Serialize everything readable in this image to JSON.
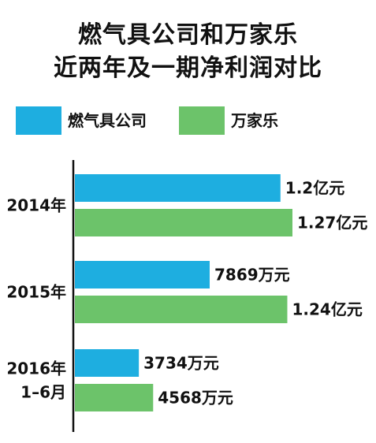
{
  "chart_data": {
    "type": "bar",
    "orientation": "horizontal",
    "title": "燃气具公司和万家乐",
    "subtitle": "近两年及一期净利润对比",
    "categories": [
      {
        "lines": [
          "2014年"
        ]
      },
      {
        "lines": [
          "2015年"
        ]
      },
      {
        "lines": [
          "2016年",
          "1–6月"
        ]
      }
    ],
    "series": [
      {
        "name": "燃气具公司",
        "color": "#1eaee0",
        "values_wan_yuan": [
          12000,
          7869,
          3734
        ],
        "labels": [
          "1.2亿元",
          "7869万元",
          "3734万元"
        ]
      },
      {
        "name": "万家乐",
        "color": "#6cc36a",
        "values_wan_yuan": [
          12700,
          12400,
          4568
        ],
        "labels": [
          "1.27亿元",
          "1.24亿元",
          "4568万元"
        ]
      }
    ],
    "grid": false,
    "legend_position": "top-left"
  }
}
